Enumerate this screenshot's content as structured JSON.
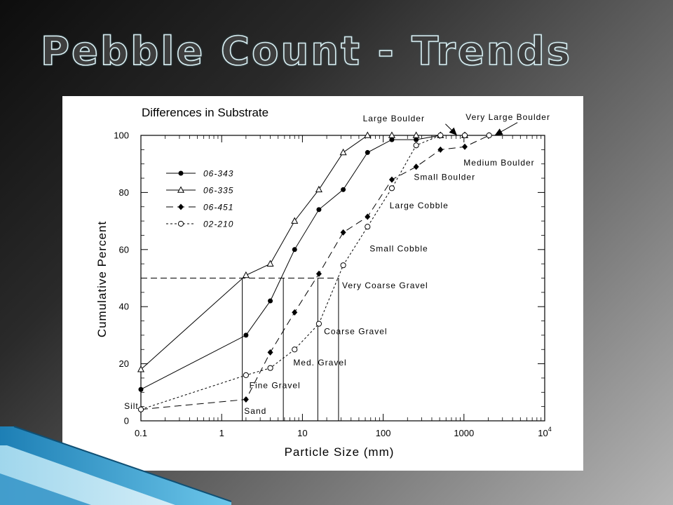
{
  "slide": {
    "title": "Pebble Count - Trends"
  },
  "colors": {
    "accent_blue": "#3fa0d0",
    "accent_light": "#8ed4ee"
  },
  "chart_data": {
    "type": "line",
    "title": "Differences in Substrate",
    "xlabel": "Particle Size (mm)",
    "ylabel": "Cumulative Percent",
    "x_scale": "log",
    "xlim": [
      0.1,
      10000
    ],
    "ylim": [
      0,
      100
    ],
    "x_ticks": [
      {
        "v": 0.1,
        "label": "0.1"
      },
      {
        "v": 1,
        "label": "1"
      },
      {
        "v": 10,
        "label": "10"
      },
      {
        "v": 100,
        "label": "100"
      },
      {
        "v": 1000,
        "label": "1000"
      },
      {
        "v": 10000,
        "label": "10",
        "sup": "4"
      }
    ],
    "y_ticks": [
      0,
      20,
      40,
      60,
      80,
      100
    ],
    "grid": false,
    "legend_position": "top-left",
    "series": [
      {
        "name": "06-343",
        "marker": "filled-circle",
        "dash": "solid",
        "x": [
          0.1,
          2,
          4,
          8,
          16,
          32,
          64,
          128,
          256,
          512,
          1024
        ],
        "y": [
          11,
          30,
          42,
          60,
          74,
          81,
          94,
          98.5,
          98.5,
          100,
          100
        ]
      },
      {
        "name": "06-335",
        "marker": "open-triangle",
        "dash": "solid",
        "x": [
          0.1,
          2,
          4,
          8,
          16,
          32,
          64,
          128,
          256,
          512,
          1024
        ],
        "y": [
          18,
          51,
          55,
          70,
          81,
          94,
          100,
          100,
          100,
          100,
          100
        ]
      },
      {
        "name": "06-451",
        "marker": "filled-diamond",
        "dash": "dash",
        "x": [
          0.1,
          2,
          4,
          8,
          16,
          32,
          64,
          128,
          256,
          512,
          1024,
          2048
        ],
        "y": [
          4,
          7.5,
          24,
          38,
          51.5,
          66,
          71.5,
          84.5,
          89,
          95,
          96,
          100
        ]
      },
      {
        "name": "02-210",
        "marker": "open-circle",
        "dash": "dot",
        "x": [
          0.1,
          2,
          4,
          8,
          16,
          32,
          64,
          128,
          256,
          512,
          1024,
          2048
        ],
        "y": [
          4,
          16,
          18.5,
          25,
          34,
          54.5,
          68,
          81.5,
          96.5,
          100,
          100,
          100
        ]
      }
    ],
    "d50_lines": [
      {
        "x": 1.8,
        "y": 50
      },
      {
        "x": 5.8,
        "y": 50
      },
      {
        "x": 15.5,
        "y": 50
      },
      {
        "x": 28,
        "y": 50
      }
    ],
    "annotations": [
      {
        "text": "Silt",
        "x": 0.062,
        "y": 5.3
      },
      {
        "text": "Sand",
        "x": 1.9,
        "y": 3.6
      },
      {
        "text": "Fine Gravel",
        "x": 2.2,
        "y": 12.5
      },
      {
        "text": "Med. Gravel",
        "x": 7.7,
        "y": 20.5
      },
      {
        "text": "Coarse Gravel",
        "x": 18.5,
        "y": 31.5
      },
      {
        "text": "Very Coarse Gravel",
        "x": 31,
        "y": 47.5
      },
      {
        "text": "Small Cobble",
        "x": 68,
        "y": 60.5
      },
      {
        "text": "Large Cobble",
        "x": 120,
        "y": 75.5
      },
      {
        "text": "Small Boulder",
        "x": 240,
        "y": 85.5
      },
      {
        "text": "Medium Boulder",
        "x": 990,
        "y": 90.5
      },
      {
        "text": "Large Boulder",
        "x": 56,
        "y": 106
      },
      {
        "text": "Very Large Boulder",
        "x": 1050,
        "y": 106.5
      }
    ],
    "arrows": [
      {
        "from": [
          590,
          104
        ],
        "to": [
          820,
          100
        ]
      },
      {
        "from": [
          4600,
          104.5
        ],
        "to": [
          2400,
          100
        ]
      }
    ]
  }
}
